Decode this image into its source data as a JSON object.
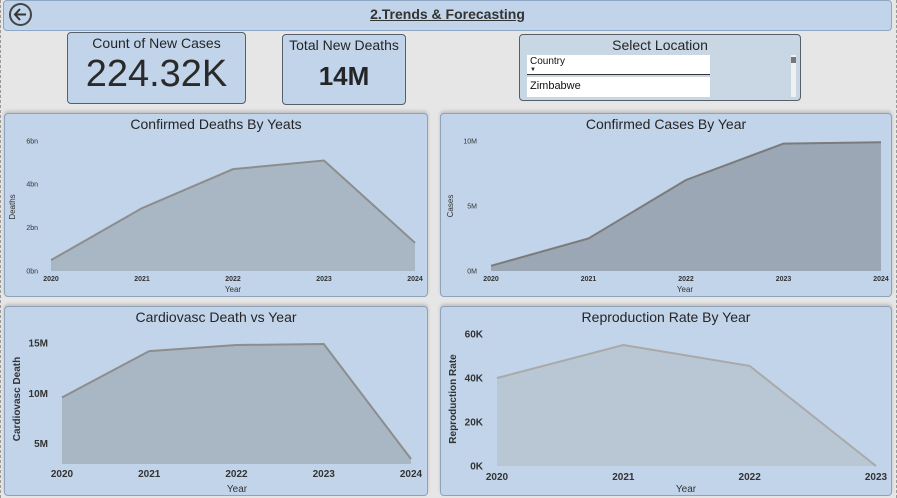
{
  "header": {
    "title": "2.Trends & Forecasting",
    "back_icon": "back-arrow-icon"
  },
  "kpis": [
    {
      "label": "Count of New Cases",
      "value": "224.32K"
    },
    {
      "label": "Total New Deaths",
      "value": "14M"
    }
  ],
  "slicer": {
    "title": "Select Location",
    "field": "Country",
    "selected": "Zimbabwe"
  },
  "colors": {
    "panel": "#c1d4ea",
    "area1": "#a9b7c5",
    "area2": "#9ba7b5",
    "area4": "#b9c7d5"
  },
  "charts": [
    {
      "title": "Confirmed Deaths By Yeats",
      "xlabel": "Year",
      "ylabel": "Deaths",
      "yticks": [
        "0bn",
        "2bn",
        "4bn",
        "6bn"
      ],
      "xticks": [
        "2020",
        "2021",
        "2022",
        "2023",
        "2024"
      ]
    },
    {
      "title": "Confirmed Cases By Year",
      "xlabel": "Year",
      "ylabel": "Cases",
      "yticks": [
        "0M",
        "5M",
        "10M"
      ],
      "xticks": [
        "2020",
        "2021",
        "2022",
        "2023",
        "2024"
      ]
    },
    {
      "title": "Cardiovasc Death vs Year",
      "xlabel": "Year",
      "ylabel": "Cardiovasc Death",
      "yticks": [
        "5M",
        "10M",
        "15M"
      ],
      "xticks": [
        "2020",
        "2021",
        "2022",
        "2023",
        "2024"
      ]
    },
    {
      "title": "Reproduction Rate By Year",
      "xlabel": "Year",
      "ylabel": "Reproduction Rate",
      "yticks": [
        "0K",
        "20K",
        "40K",
        "60K"
      ],
      "xticks": [
        "2020",
        "2021",
        "2022",
        "2023"
      ]
    }
  ],
  "chart_data": [
    {
      "type": "area",
      "title": "Confirmed Deaths By Yeats",
      "xlabel": "Year",
      "ylabel": "Deaths",
      "ylim": [
        0,
        6
      ],
      "y_unit": "bn",
      "x": [
        2020,
        2021,
        2022,
        2023,
        2024
      ],
      "values": [
        0.5,
        2.9,
        4.7,
        5.1,
        1.3
      ]
    },
    {
      "type": "area",
      "title": "Confirmed Cases By Year",
      "xlabel": "Year",
      "ylabel": "Cases",
      "ylim": [
        0,
        10
      ],
      "y_unit": "M",
      "x": [
        2020,
        2021,
        2022,
        2023,
        2024
      ],
      "values": [
        0.4,
        2.5,
        7.0,
        9.8,
        9.9
      ]
    },
    {
      "type": "area",
      "title": "Cardiovasc Death vs Year",
      "xlabel": "Year",
      "ylabel": "Cardiovasc Death",
      "ylim": [
        3,
        15
      ],
      "y_unit": "M",
      "x": [
        2020,
        2021,
        2022,
        2023,
        2024
      ],
      "values": [
        9.6,
        14.2,
        14.8,
        14.9,
        3.5
      ]
    },
    {
      "type": "area",
      "title": "Reproduction Rate By Year",
      "xlabel": "Year",
      "ylabel": "Reproduction Rate",
      "ylim": [
        0,
        60
      ],
      "y_unit": "K",
      "x": [
        2020,
        2021,
        2022,
        2023
      ],
      "values": [
        40,
        55,
        45.5,
        0
      ]
    }
  ]
}
